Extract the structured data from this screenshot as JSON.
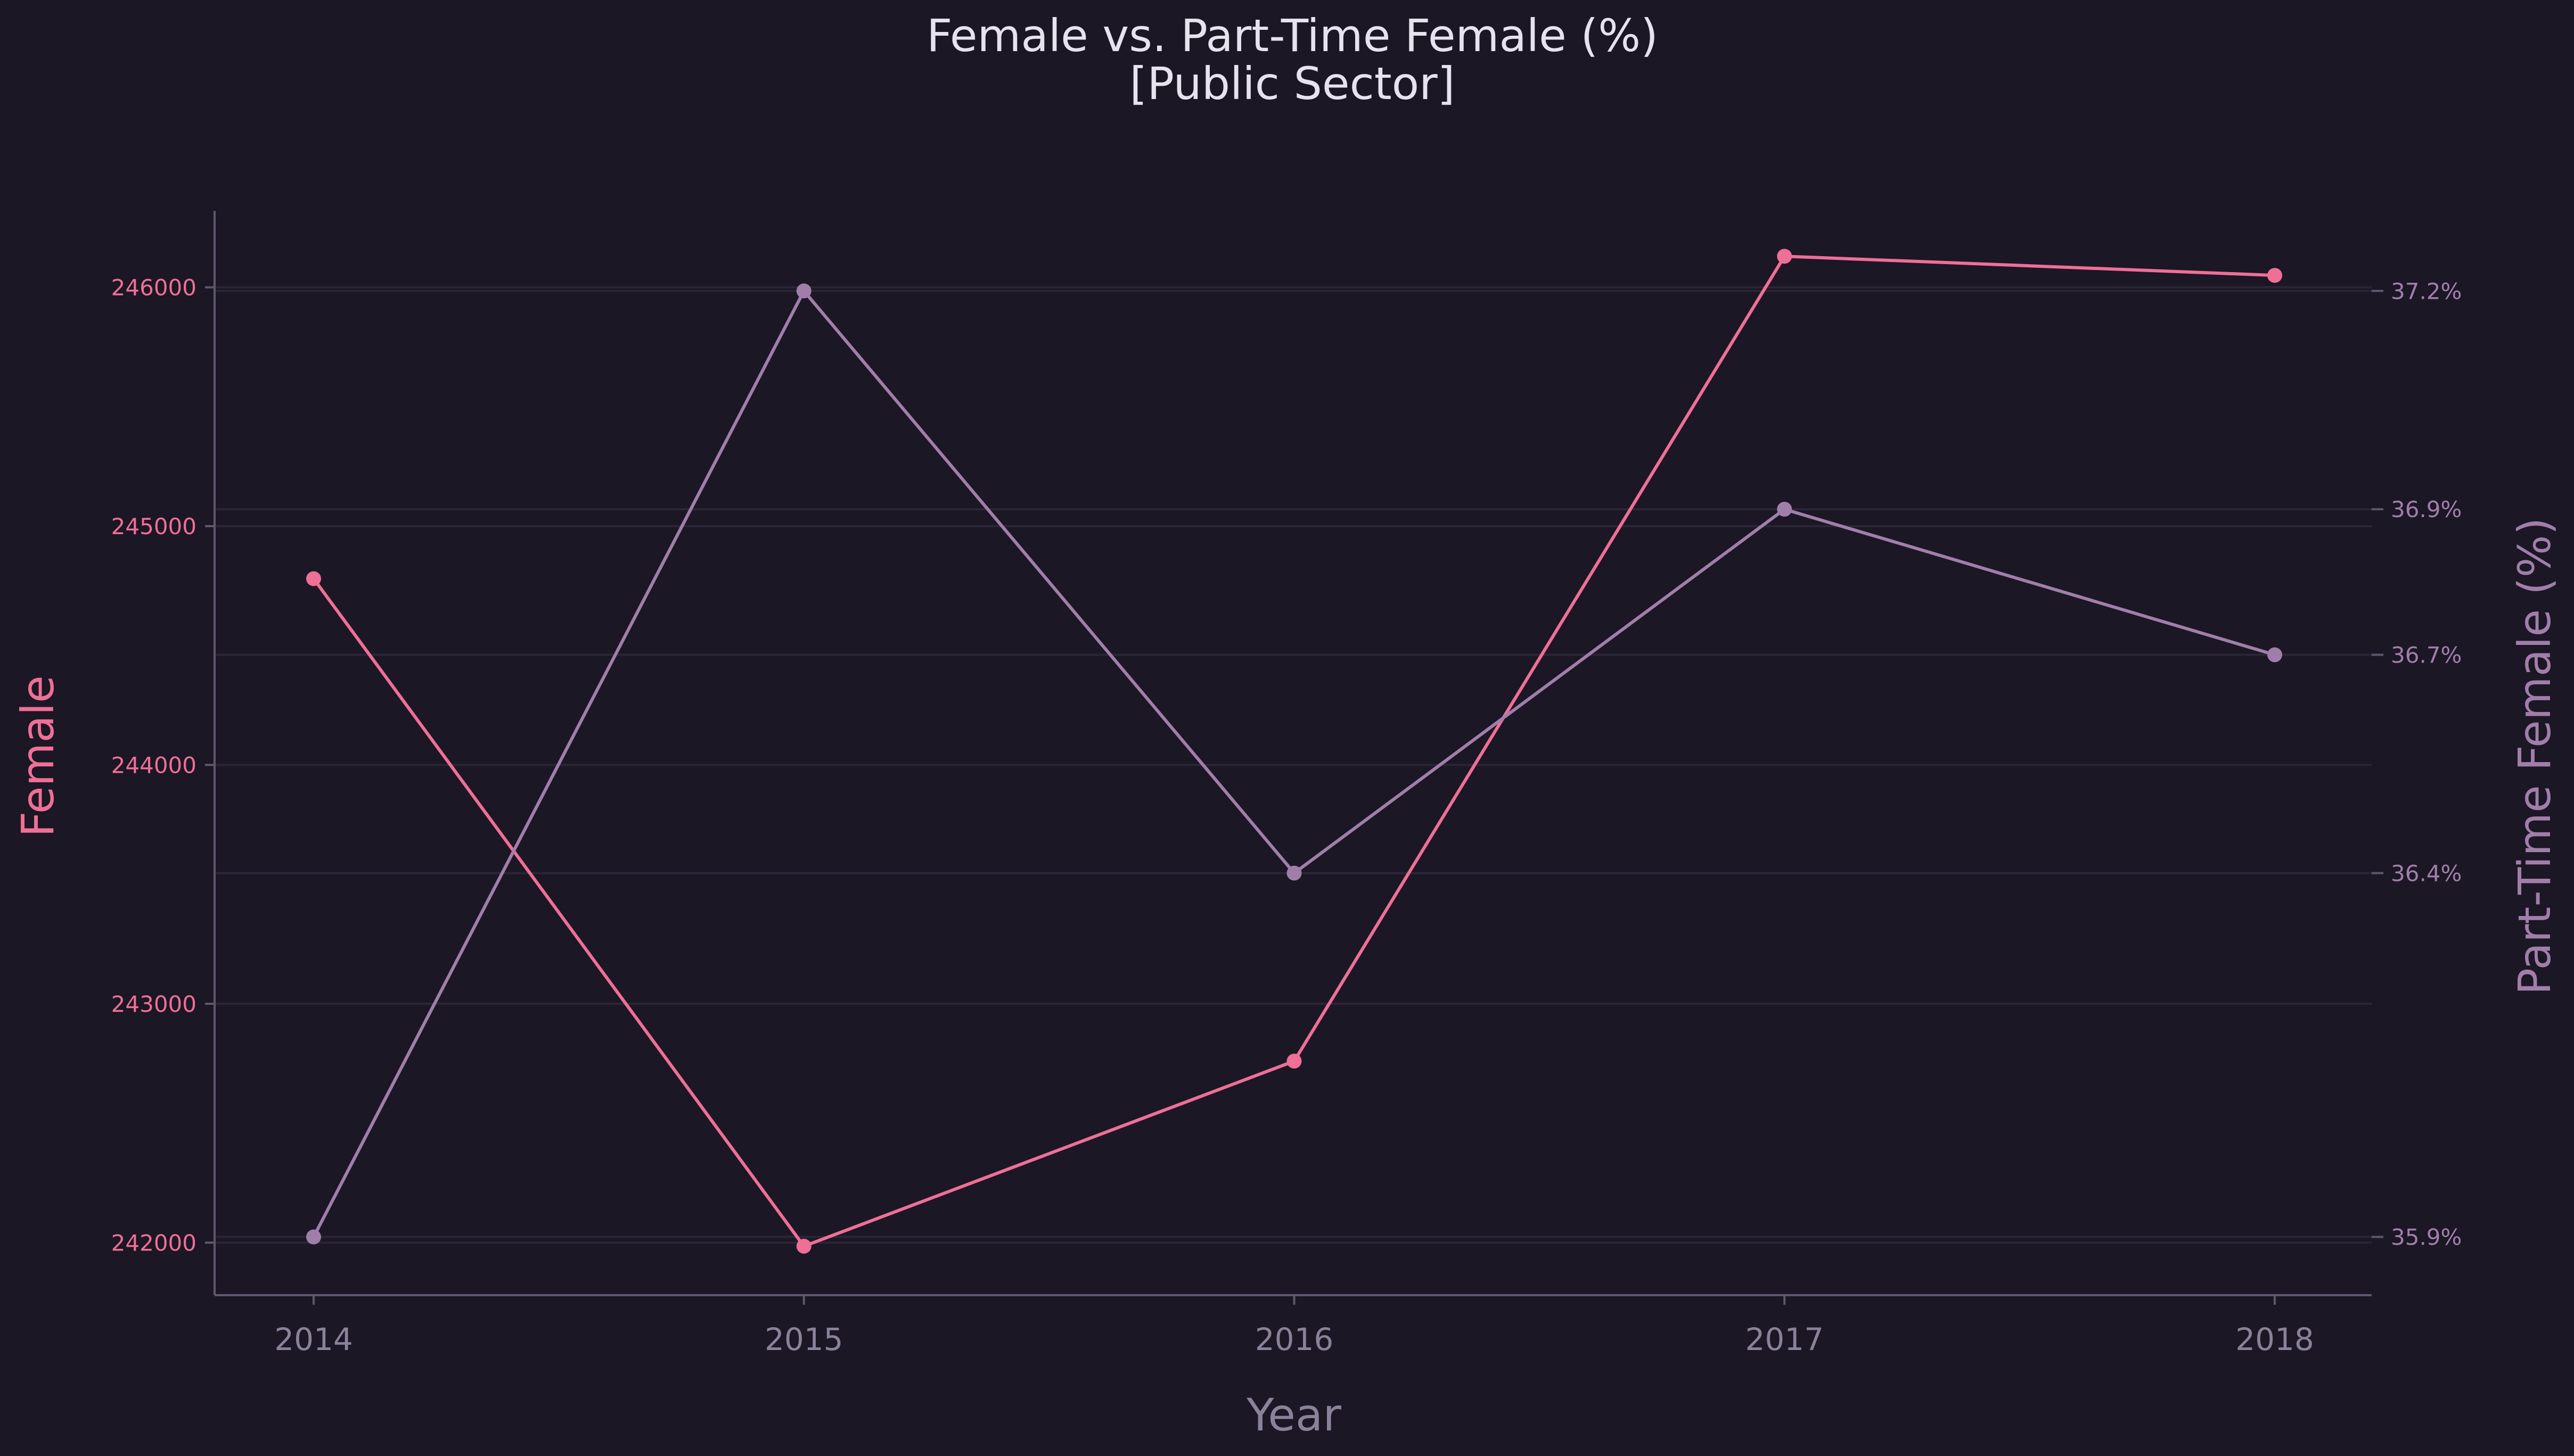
{
  "chart_data": {
    "type": "line",
    "title": "Female vs. Part-Time Female (%)",
    "subtitle": "[Public Sector]",
    "xlabel": "Year",
    "ylabel_left": "Female",
    "ylabel_right": "Part-Time Female (%)",
    "x": [
      "2014",
      "2015",
      "2016",
      "2017",
      "2018"
    ],
    "ylim_left": [
      241780,
      246320
    ],
    "ylim_right": [
      35.82,
      37.31
    ],
    "left_ticks": [
      "242000",
      "243000",
      "244000",
      "245000",
      "246000"
    ],
    "right_ticks": [
      "35.9%",
      "36.4%",
      "36.7%",
      "36.9%",
      "37.2%"
    ],
    "grid": true,
    "series": [
      {
        "name": "Female",
        "axis": "left",
        "color": "#ef6f96",
        "values": [
          244780,
          241985,
          242760,
          246130,
          246050
        ]
      },
      {
        "name": "Part-Time Female (%)",
        "axis": "right",
        "color": "#a17eaa",
        "values": [
          35.9,
          37.2,
          36.4,
          36.9,
          36.7
        ]
      }
    ],
    "colors": {
      "background": "#1b1725",
      "grid": "#2b2637",
      "spine": "#5f586d"
    }
  }
}
